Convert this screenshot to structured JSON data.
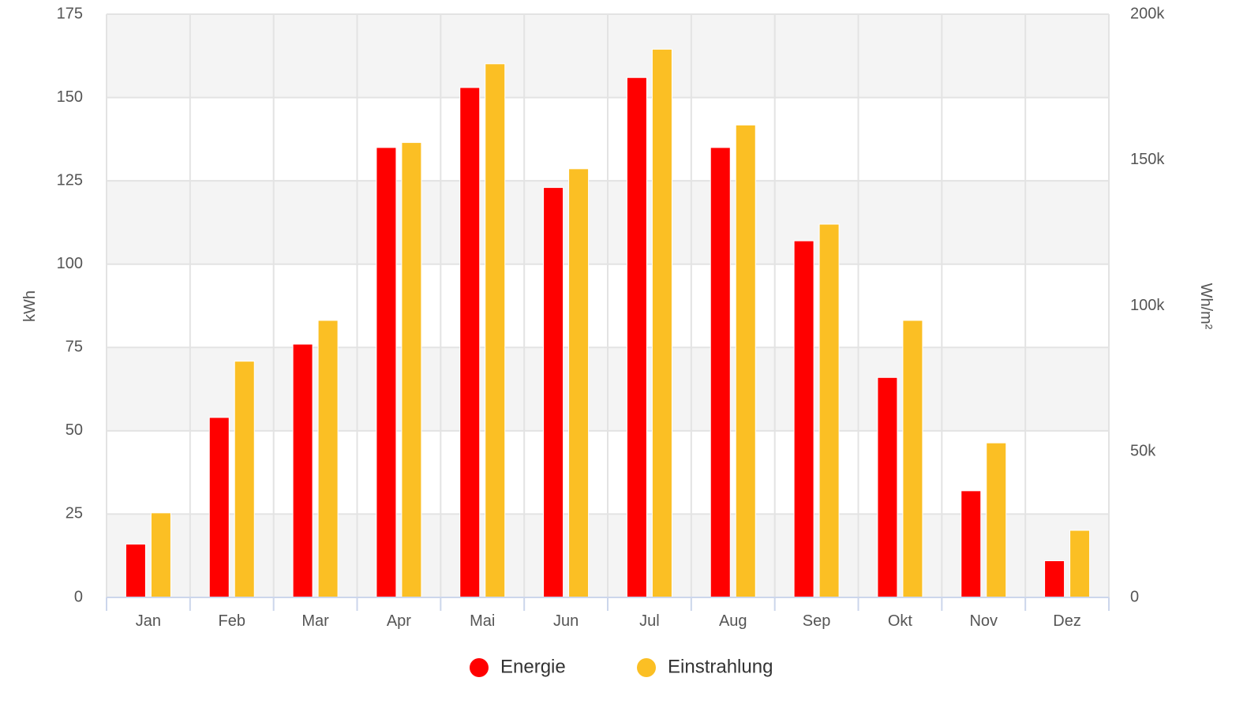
{
  "chart_data": {
    "type": "bar",
    "categories": [
      "Jan",
      "Feb",
      "Mar",
      "Apr",
      "Mai",
      "Jun",
      "Jul",
      "Aug",
      "Sep",
      "Okt",
      "Nov",
      "Dez"
    ],
    "series": [
      {
        "name": "Energie",
        "axis": "left",
        "color": "#ff0000",
        "values": [
          16,
          54,
          76,
          135,
          153,
          123,
          156,
          135,
          107,
          66,
          32,
          11
        ]
      },
      {
        "name": "Einstrahlung",
        "axis": "right",
        "color": "#fbbf24",
        "values": [
          29000,
          81000,
          95000,
          156000,
          183000,
          147000,
          188000,
          162000,
          128000,
          95000,
          53000,
          23000
        ]
      }
    ],
    "y_left": {
      "label": "kWh",
      "range": [
        0,
        175
      ],
      "ticks": [
        "0",
        "25",
        "50",
        "75",
        "100",
        "125",
        "150",
        "175"
      ]
    },
    "y_right": {
      "label": "Wh/m²",
      "range": [
        0,
        200000
      ],
      "ticks": [
        "0",
        "50k",
        "100k",
        "150k",
        "200k"
      ]
    },
    "grid": true,
    "band_fill": "#f4f4f4",
    "legend_position": "bottom-center"
  }
}
